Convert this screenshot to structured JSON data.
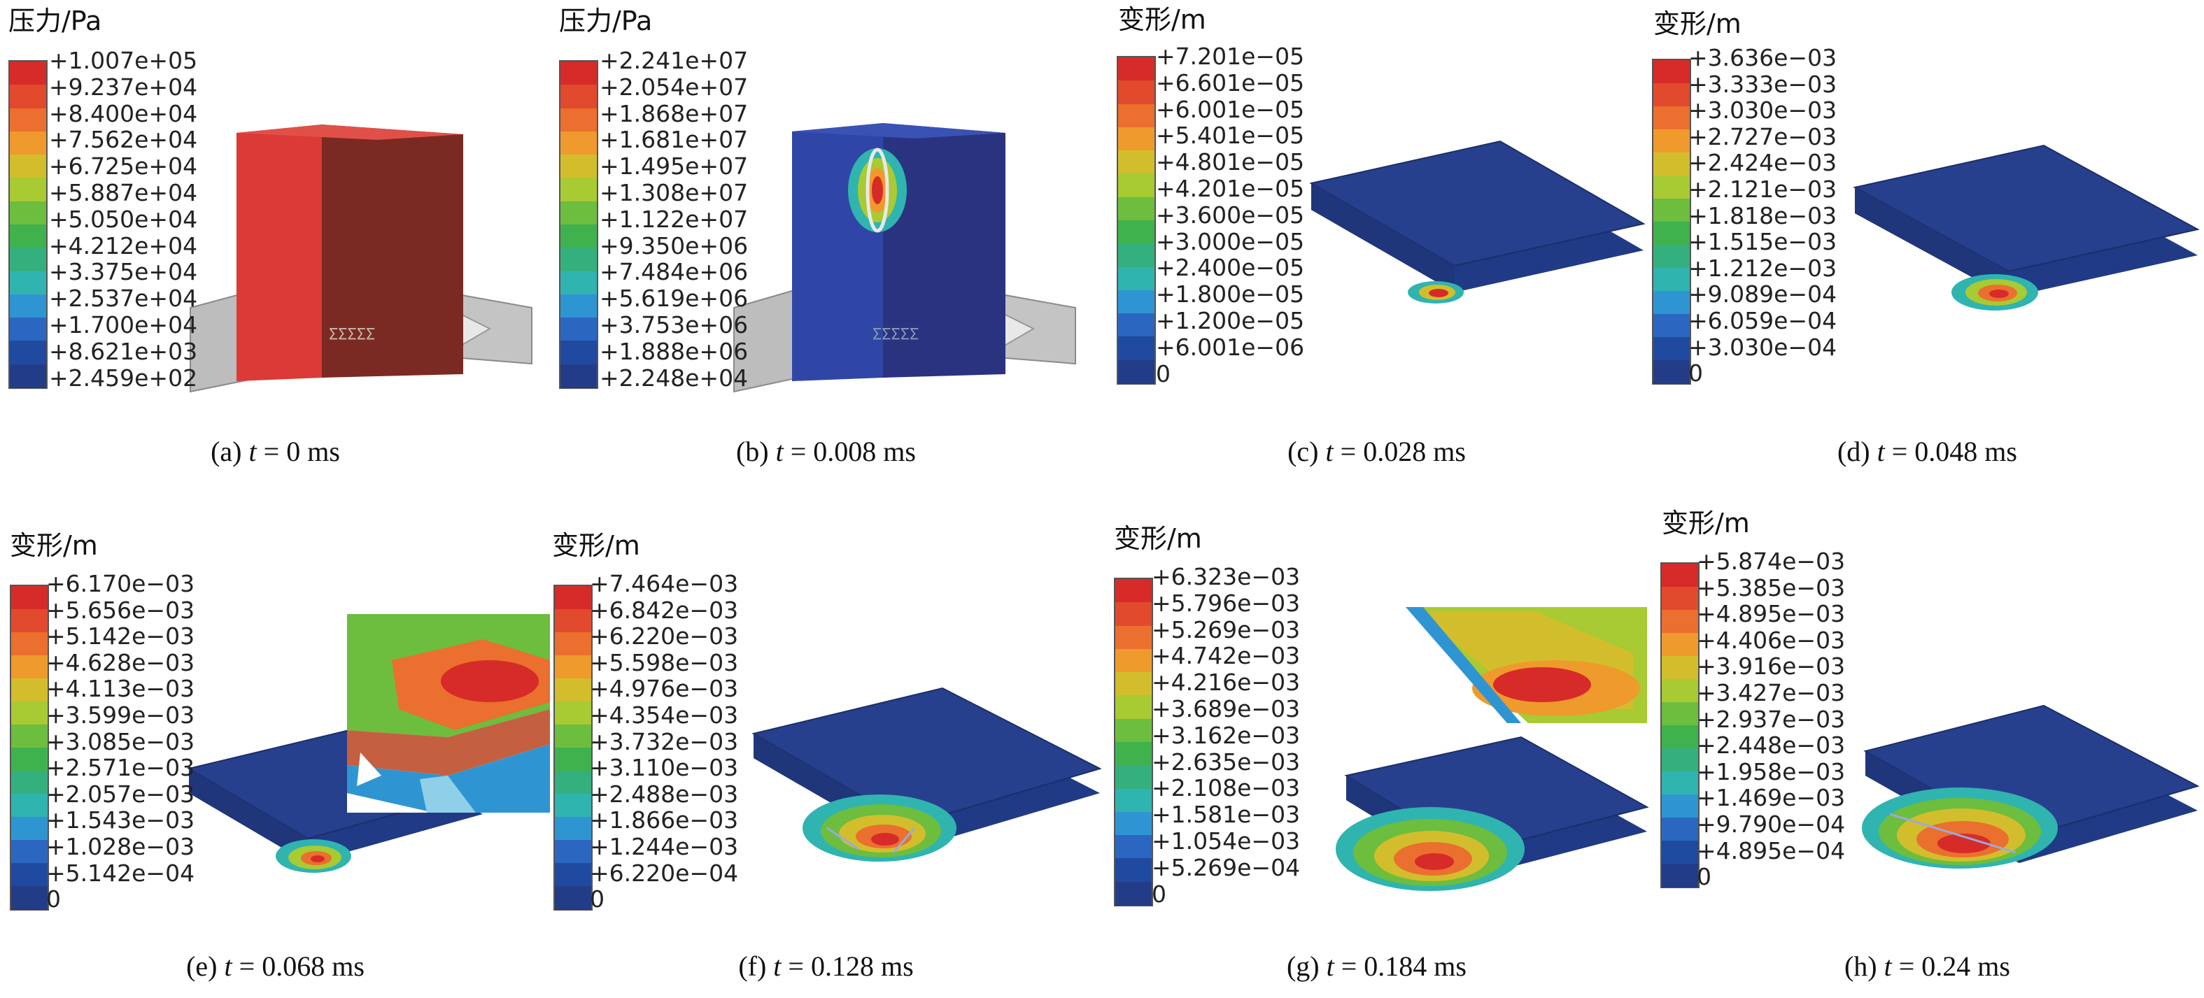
{
  "colors": {
    "scale": [
      "#d62b28",
      "#e14a2c",
      "#eb6f2e",
      "#ef9a2c",
      "#d2be2c",
      "#a8ca32",
      "#6dbd3e",
      "#3fb24d",
      "#34b07e",
      "#2fb4b0",
      "#2f95d2",
      "#2b67c1",
      "#1f4a9f",
      "#233c88"
    ],
    "pressure_red": "#dc3a37",
    "pressure_red_dark": "#7a2a22",
    "pressure_blue": "#3046a6",
    "pressure_blue_dark": "#2a3380",
    "plate_blue": "#26408e",
    "steel_grey": "#b9b9b9"
  },
  "panels": [
    {
      "id": "a",
      "legend_title": "压力/Pa",
      "ticks": [
        "+1.007e+05",
        "+9.237e+04",
        "+8.400e+04",
        "+7.562e+04",
        "+6.725e+04",
        "+5.887e+04",
        "+5.050e+04",
        "+4.212e+04",
        "+3.375e+04",
        "+2.537e+04",
        "+1.700e+04",
        "+8.621e+03",
        "+2.459e+02"
      ],
      "caption_prefix": "(a) ",
      "caption_var": "t",
      "caption_rest": " = 0 ms"
    },
    {
      "id": "b",
      "legend_title": "压力/Pa",
      "ticks": [
        "+2.241e+07",
        "+2.054e+07",
        "+1.868e+07",
        "+1.681e+07",
        "+1.495e+07",
        "+1.308e+07",
        "+1.122e+07",
        "+9.350e+06",
        "+7.484e+06",
        "+5.619e+06",
        "+3.753e+06",
        "+1.888e+06",
        "+2.248e+04"
      ],
      "caption_prefix": "(b) ",
      "caption_var": "t",
      "caption_rest": " = 0.008 ms"
    },
    {
      "id": "c",
      "legend_title": "变形/m",
      "ticks": [
        "+7.201e−05",
        "+6.601e−05",
        "+6.001e−05",
        "+5.401e−05",
        "+4.801e−05",
        "+4.201e−05",
        "+3.600e−05",
        "+3.000e−05",
        "+2.400e−05",
        "+1.800e−05",
        "+1.200e−05",
        "+6.001e−06",
        "0"
      ],
      "caption_prefix": "(c) ",
      "caption_var": "t",
      "caption_rest": " = 0.028 ms"
    },
    {
      "id": "d",
      "legend_title": "变形/m",
      "ticks": [
        "+3.636e−03",
        "+3.333e−03",
        "+3.030e−03",
        "+2.727e−03",
        "+2.424e−03",
        "+2.121e−03",
        "+1.818e−03",
        "+1.515e−03",
        "+1.212e−03",
        "+9.089e−04",
        "+6.059e−04",
        "+3.030e−04",
        "0"
      ],
      "caption_prefix": "(d) ",
      "caption_var": "t",
      "caption_rest": " = 0.048 ms"
    },
    {
      "id": "e",
      "legend_title": "变形/m",
      "ticks": [
        "+6.170e−03",
        "+5.656e−03",
        "+5.142e−03",
        "+4.628e−03",
        "+4.113e−03",
        "+3.599e−03",
        "+3.085e−03",
        "+2.571e−03",
        "+2.057e−03",
        "+1.543e−03",
        "+1.028e−03",
        "+5.142e−04",
        "0"
      ],
      "caption_prefix": "(e) ",
      "caption_var": "t",
      "caption_rest": " = 0.068 ms"
    },
    {
      "id": "f",
      "legend_title": "变形/m",
      "ticks": [
        "+7.464e−03",
        "+6.842e−03",
        "+6.220e−03",
        "+5.598e−03",
        "+4.976e−03",
        "+4.354e−03",
        "+3.732e−03",
        "+3.110e−03",
        "+2.488e−03",
        "+1.866e−03",
        "+1.244e−03",
        "+6.220e−04",
        "0"
      ],
      "caption_prefix": "(f) ",
      "caption_var": "t",
      "caption_rest": " = 0.128 ms"
    },
    {
      "id": "g",
      "legend_title": "变形/m",
      "ticks": [
        "+6.323e−03",
        "+5.796e−03",
        "+5.269e−03",
        "+4.742e−03",
        "+4.216e−03",
        "+3.689e−03",
        "+3.162e−03",
        "+2.635e−03",
        "+2.108e−03",
        "+1.581e−03",
        "+1.054e−03",
        "+5.269e−04",
        "0"
      ],
      "caption_prefix": "(g) ",
      "caption_var": "t",
      "caption_rest": " = 0.184 ms"
    },
    {
      "id": "h",
      "legend_title": "变形/m",
      "ticks": [
        "+5.874e−03",
        "+5.385e−03",
        "+4.895e−03",
        "+4.406e−03",
        "+3.916e−03",
        "+3.427e−03",
        "+2.937e−03",
        "+2.448e−03",
        "+1.958e−03",
        "+1.469e−03",
        "+9.790e−04",
        "+4.895e−04",
        "0"
      ],
      "caption_prefix": "(h) ",
      "caption_var": "t",
      "caption_rest": " = 0.24 ms"
    }
  ]
}
